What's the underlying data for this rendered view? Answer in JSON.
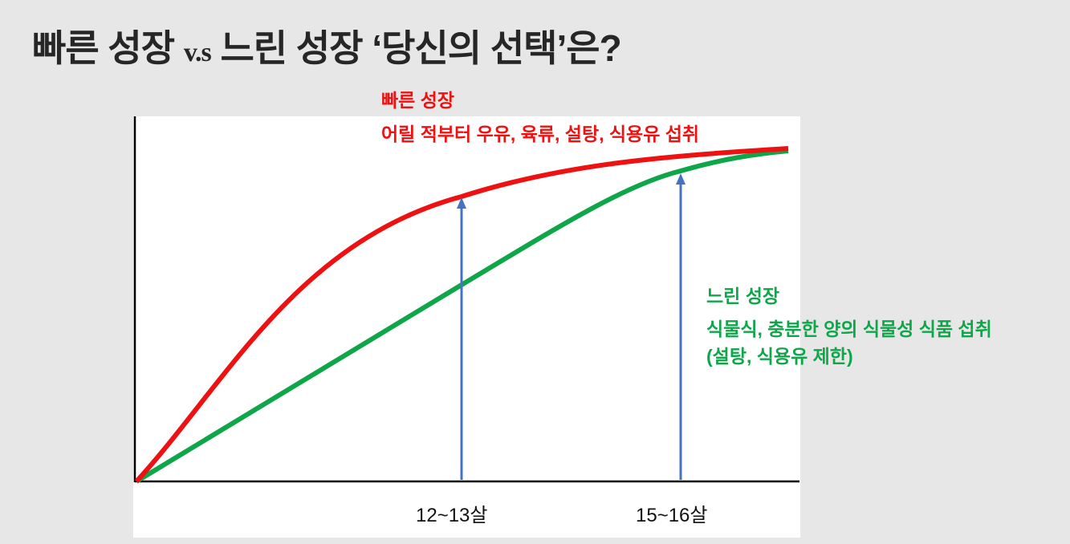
{
  "title": {
    "part1": "빠른 성장",
    "vs": "v.s",
    "part2": "느린 성장 ‘당신의 선택’은?"
  },
  "fast_growth": {
    "label": "빠른 성장",
    "description": "어릴 적부터 우유, 육류, 설탕, 식용유 섭취",
    "color": "#ee1111"
  },
  "slow_growth": {
    "label": "느린 성장",
    "description_line1": "식물식, 충분한 양의 식물성 식품 섭취",
    "description_line2": "(설탕, 식용유 제한)",
    "color": "#0fa64a"
  },
  "x_markers": [
    "12~13살",
    "15~16살"
  ],
  "arrow_color": "#4472c4"
}
